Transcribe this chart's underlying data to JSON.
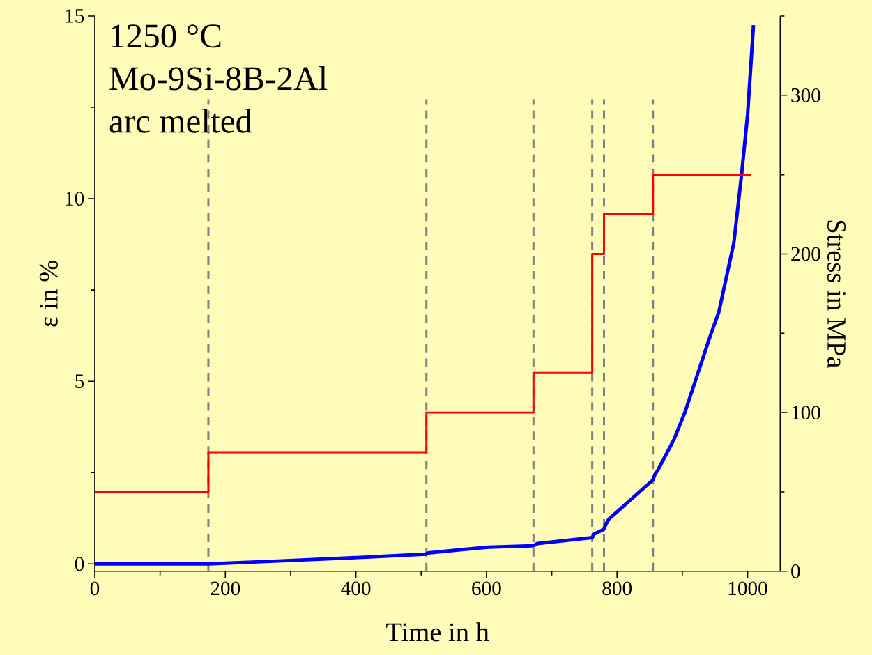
{
  "chart_data": {
    "type": "line",
    "xlabel": "Time in h",
    "ylabel": "ε in %",
    "y2label": "Stress in MPa",
    "annotations": [
      "1250 °C",
      "Mo-9Si-8B-2Al",
      "arc melted"
    ],
    "xlim": [
      0,
      1050
    ],
    "ylim": [
      -0.2,
      15
    ],
    "y2lim": [
      0,
      350
    ],
    "xticks": [
      0,
      {
        "value": 100,
        "label": null
      },
      200,
      {
        "value": 300,
        "label": null
      },
      400,
      {
        "value": 500,
        "label": null
      },
      600,
      {
        "value": 700,
        "label": null
      },
      800,
      {
        "value": 900,
        "label": null
      },
      1000
    ],
    "yticks": [
      0,
      {
        "value": 2.5,
        "label": null
      },
      5,
      {
        "value": 7.5,
        "label": null
      },
      10,
      {
        "value": 12.5,
        "label": null
      },
      15
    ],
    "y2ticks": [
      0,
      {
        "value": 50,
        "label": null
      },
      100,
      {
        "value": 150,
        "label": null
      },
      200,
      {
        "value": 250,
        "label": null
      },
      300,
      {
        "value": 350,
        "label": null
      }
    ],
    "series": [
      {
        "color": "#0000ff",
        "x": [
          0,
          174,
          281,
          422,
          507,
          511,
          568,
          603,
          672,
          678,
          762,
          765,
          780,
          782,
          787,
          855,
          858,
          862,
          887,
          904,
          942,
          956,
          979,
          991,
          1000,
          1009
        ],
        "values": [
          0,
          0,
          0.08,
          0.19,
          0.27,
          0.3,
          0.4,
          0.46,
          0.5,
          0.56,
          0.72,
          0.82,
          0.95,
          1.05,
          1.22,
          2.3,
          2.45,
          2.55,
          3.4,
          4.15,
          6.2,
          6.9,
          8.8,
          10.7,
          12.3,
          14.75
        ]
      },
      {
        "type": "step",
        "axis": "y2",
        "color": "#ff0000",
        "x": [
          0,
          174,
          508,
          672,
          762,
          780,
          855,
          1005
        ],
        "values": [
          50,
          75,
          100,
          125,
          200,
          225,
          250,
          250
        ]
      }
    ],
    "ref_lines": [
      {
        "axis": "x",
        "value": 174,
        "color": "#808080",
        "line_style": "dashed"
      },
      {
        "axis": "x",
        "value": 508,
        "color": "#808080",
        "line_style": "dashed"
      },
      {
        "axis": "x",
        "value": 672,
        "color": "#808080",
        "line_style": "dashed"
      },
      {
        "axis": "x",
        "value": 762,
        "color": "#808080",
        "line_style": "dashed"
      },
      {
        "axis": "x",
        "value": 780,
        "color": "#808080",
        "line_style": "dashed"
      },
      {
        "axis": "x",
        "value": 855,
        "color": "#808080",
        "line_style": "dashed"
      }
    ]
  }
}
